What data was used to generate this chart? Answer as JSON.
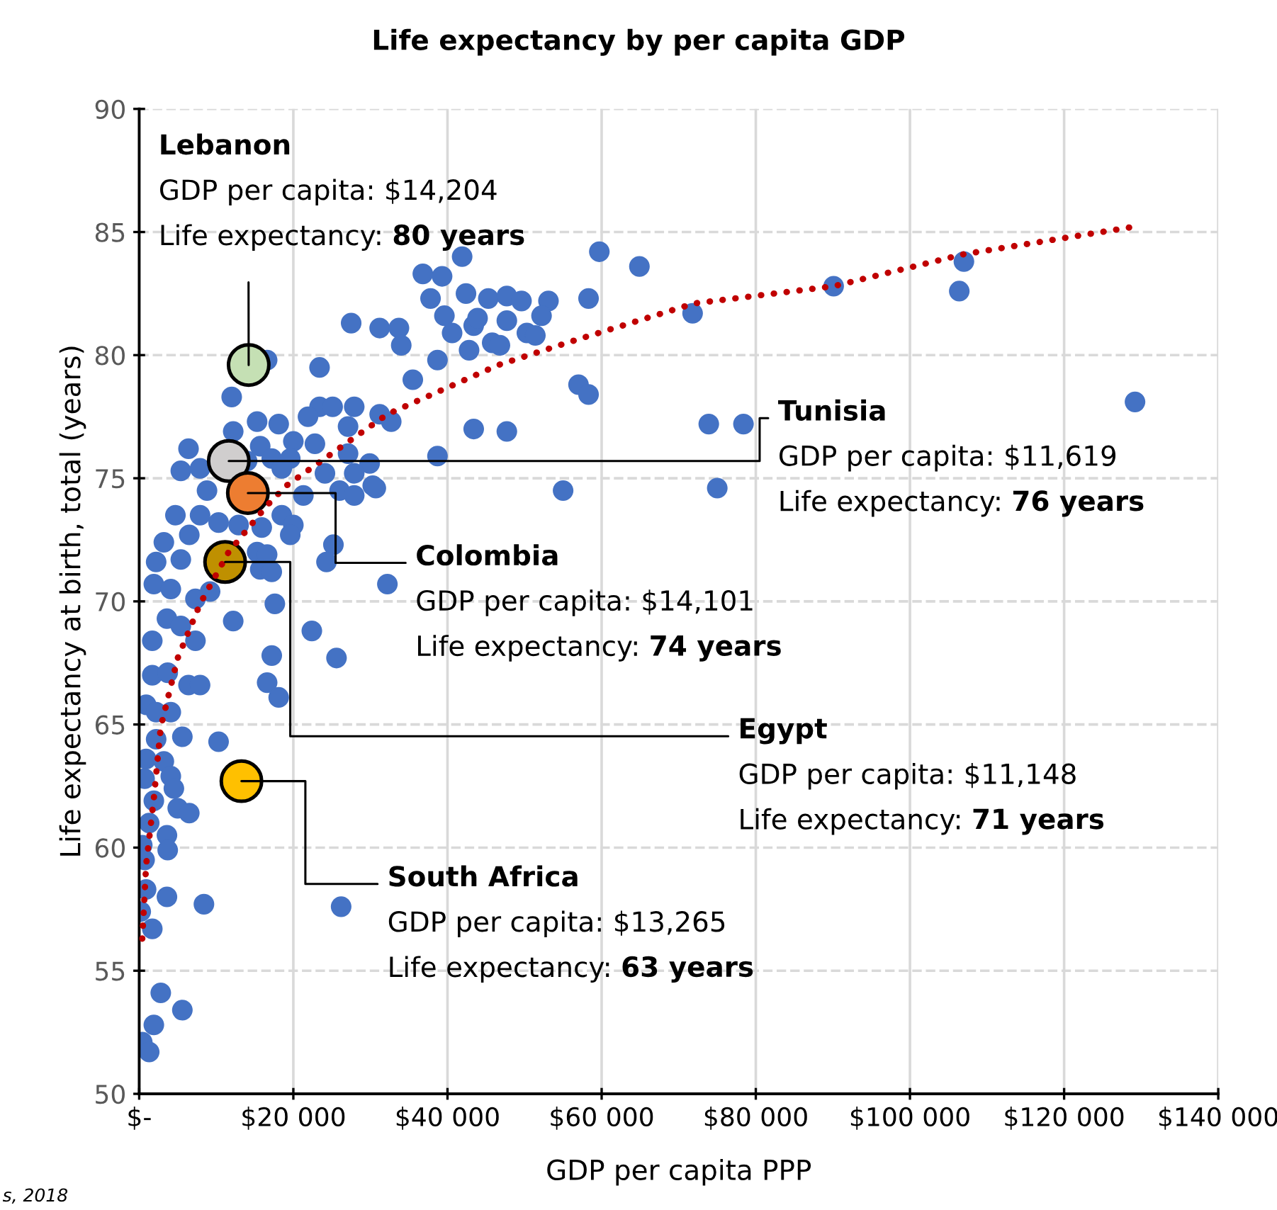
{
  "chart_data": {
    "type": "scatter",
    "title": "Life expectancy by per capita GDP",
    "xlabel": "GDP per capita PPP",
    "ylabel": "Life expectancy at birth, total (years)",
    "xlim": [
      0,
      140000
    ],
    "ylim": [
      50,
      90
    ],
    "xticks": [
      {
        "value": 0,
        "label": "$-"
      },
      {
        "value": 20000,
        "label": "$20 000"
      },
      {
        "value": 40000,
        "label": "$40 000"
      },
      {
        "value": 60000,
        "label": "$60 000"
      },
      {
        "value": 80000,
        "label": "$80 000"
      },
      {
        "value": 100000,
        "label": "$100 000"
      },
      {
        "value": 120000,
        "label": "$120 000"
      },
      {
        "value": 140000,
        "label": "$140 000"
      }
    ],
    "yticks": [
      50,
      55,
      60,
      65,
      70,
      75,
      80,
      85,
      90
    ],
    "grid": true,
    "marker": "circle",
    "series": [
      {
        "color": "#4472c4",
        "x": [
          36800,
          39300,
          41900,
          59700,
          64900,
          37800,
          42400,
          45300,
          47700,
          49600,
          53100,
          58300,
          27500,
          31200,
          33700,
          34000,
          39600,
          40600,
          43400,
          43900,
          47700,
          45800,
          46800,
          50300,
          51400,
          52200,
          42800,
          38700,
          35500,
          23400,
          57000,
          58300,
          71800,
          73900,
          43400,
          47700,
          38700,
          55000,
          75000,
          129200,
          107000,
          106400,
          90100,
          78400,
          16600,
          12000,
          23400,
          25100,
          21900,
          27900,
          31200,
          32700,
          27100,
          15300,
          18100,
          12200,
          20000,
          6400,
          7900,
          5400,
          15700,
          17200,
          22800,
          27100,
          29900,
          14000,
          19600,
          18500,
          24100,
          27900,
          21300,
          26000,
          27900,
          30700,
          30300,
          8800,
          4700,
          7900,
          10300,
          12900,
          15900,
          18500,
          20000,
          19600,
          6500,
          3200,
          2200,
          5400,
          15300,
          16600,
          15700,
          17200,
          25200,
          24300,
          32200,
          1900,
          4100,
          9200,
          7300,
          17600,
          3600,
          5400,
          12200,
          22400,
          7300,
          17200,
          25600,
          1700,
          16600,
          18100,
          1700,
          3700,
          6400,
          7900,
          900,
          2200,
          4100,
          5600,
          2200,
          10300,
          900,
          3200,
          4100,
          700,
          4500,
          1900,
          5000,
          6500,
          1300,
          3600,
          3700,
          400,
          700,
          900,
          3600,
          8400,
          26200,
          200,
          1700,
          2800,
          5600,
          1900,
          400,
          1300
        ],
        "values": [
          83.3,
          83.2,
          84.0,
          84.2,
          83.6,
          82.3,
          82.5,
          82.3,
          82.4,
          82.2,
          82.2,
          82.3,
          81.3,
          81.1,
          81.1,
          80.4,
          81.6,
          80.9,
          81.2,
          81.5,
          81.4,
          80.5,
          80.4,
          80.9,
          80.8,
          81.6,
          80.2,
          79.8,
          79.0,
          79.5,
          78.8,
          78.4,
          81.7,
          77.2,
          77.0,
          76.9,
          75.9,
          74.5,
          74.6,
          78.1,
          83.8,
          82.6,
          82.8,
          77.2,
          79.8,
          78.3,
          77.9,
          77.9,
          77.5,
          77.9,
          77.6,
          77.3,
          77.1,
          77.3,
          77.2,
          76.9,
          76.5,
          76.2,
          75.4,
          75.3,
          76.3,
          75.8,
          76.4,
          76.0,
          75.6,
          75.7,
          75.8,
          75.4,
          75.2,
          75.2,
          74.3,
          74.5,
          74.3,
          74.6,
          74.7,
          74.5,
          73.5,
          73.5,
          73.2,
          73.1,
          73.0,
          73.5,
          73.1,
          72.7,
          72.7,
          72.4,
          71.6,
          71.7,
          72.0,
          71.9,
          71.3,
          71.2,
          72.3,
          71.6,
          70.7,
          70.7,
          70.5,
          70.4,
          70.1,
          69.9,
          69.3,
          69.0,
          69.2,
          68.8,
          68.4,
          67.8,
          67.7,
          68.4,
          66.7,
          66.1,
          67.0,
          67.1,
          66.6,
          66.6,
          65.8,
          65.5,
          65.5,
          64.5,
          64.4,
          64.3,
          63.6,
          63.5,
          62.9,
          62.8,
          62.4,
          61.9,
          61.6,
          61.4,
          61.0,
          60.5,
          59.9,
          60.1,
          59.5,
          58.3,
          58.0,
          57.7,
          57.6,
          57.4,
          56.7,
          54.1,
          53.4,
          52.8,
          52.1,
          51.7
        ]
      },
      {
        "type": "line",
        "color": "#c00000",
        "line_style": "dotted",
        "marker": "none",
        "x": [
          400,
          900,
          1900,
          2800,
          5000,
          7900,
          11600,
          16600,
          19100,
          32200,
          46600,
          56500,
          72000,
          90100,
          107000,
          128800
        ],
        "values": [
          56.3,
          59.3,
          62.0,
          64.9,
          67.7,
          69.9,
          72.0,
          73.9,
          74.7,
          77.6,
          79.6,
          80.6,
          82.1,
          82.8,
          84.1,
          85.2
        ]
      },
      {
        "colors": [
          "#c5e0b4",
          "#d0cece",
          "#ed7d31",
          "#bf9000",
          "#ffc000"
        ],
        "x": [
          14204,
          11619,
          14101,
          11148,
          13265
        ],
        "values": [
          79.6,
          75.7,
          74.4,
          71.6,
          62.7
        ]
      }
    ],
    "annotations": [
      {
        "text": "Lebanon\nGDP per capita: $14,204\nLife expectancy: 80 years",
        "x": 14204,
        "y": 79.6
      },
      {
        "text": "Tunisia\nGDP per capita: $11,619\nLife expectancy: 76 years",
        "x": 11619,
        "y": 75.7
      },
      {
        "text": "Colombia\nGDP per capita: $14,101\nLife expectancy: 74 years",
        "x": 14101,
        "y": 74.4
      },
      {
        "text": "Egypt\nGDP per capita: $11,148\nLife expectancy: 71 years",
        "x": 11148,
        "y": 71.6
      },
      {
        "text": "South Africa\nGDP per capita: $13,265\nLife expectancy: 63 years",
        "x": 13265,
        "y": 62.7
      },
      "s, 2018"
    ]
  }
}
